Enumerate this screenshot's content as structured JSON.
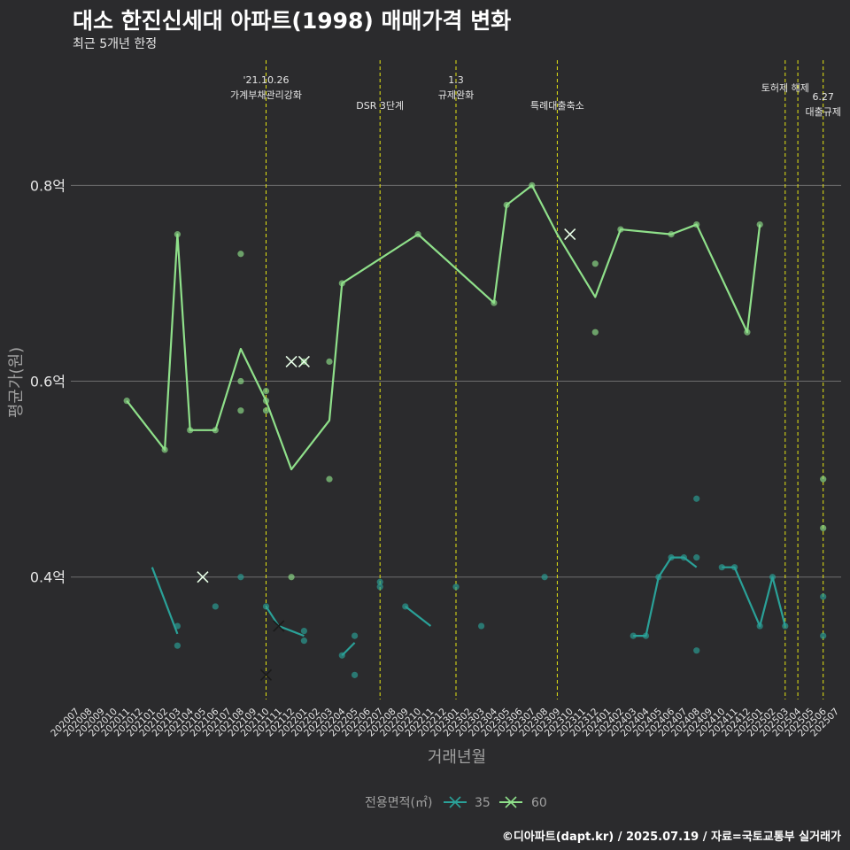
{
  "header": {
    "title": "대소 한진신세대 아파트(1998) 매매가격 변화",
    "subtitle": "최근 5개년 한정"
  },
  "footer": {
    "credit": "©디아파트(dapt.kr) / 2025.07.19 / 자료=국토교통부 실거래가"
  },
  "colors": {
    "background": "#2b2b2d",
    "grid": "#6e6e6e",
    "event_line": "#e5e512",
    "series_35": "#2aa198",
    "series_60": "#8fe08a",
    "text_light": "#e6e6e6",
    "axis_title": "#a0a0a0"
  },
  "chart_data": {
    "type": "line",
    "xlabel": "거래년월",
    "ylabel": "평균가(원)",
    "ylim": [
      0.275,
      0.935
    ],
    "y_ticks": [
      {
        "value": 0.4,
        "label": "0.4억"
      },
      {
        "value": 0.6,
        "label": "0.6억"
      },
      {
        "value": 0.8,
        "label": "0.8억"
      }
    ],
    "x_categories": [
      "202007",
      "202008",
      "202009",
      "202010",
      "202011",
      "202012",
      "202101",
      "202102",
      "202103",
      "202104",
      "202105",
      "202106",
      "202107",
      "202108",
      "202109",
      "202110",
      "202111",
      "202112",
      "202201",
      "202202",
      "202203",
      "202204",
      "202205",
      "202206",
      "202207",
      "202208",
      "202209",
      "202210",
      "202211",
      "202212",
      "202301",
      "202302",
      "202303",
      "202304",
      "202305",
      "202306",
      "202307",
      "202308",
      "202309",
      "202310",
      "202311",
      "202312",
      "202401",
      "202402",
      "202403",
      "202404",
      "202405",
      "202406",
      "202407",
      "202408",
      "202409",
      "202410",
      "202411",
      "202412",
      "202501",
      "202502",
      "202503",
      "202504",
      "202505",
      "202506",
      "202507"
    ],
    "legend": {
      "title": "전용면적(㎡)",
      "position": "bottom",
      "items": [
        {
          "label": "35",
          "color": "#2aa198"
        },
        {
          "label": "60",
          "color": "#8fe08a"
        }
      ]
    },
    "events": [
      {
        "x": 15,
        "lines": [
          "'21.10.26",
          "가계부채관리강화"
        ]
      },
      {
        "x": 24,
        "lines": [
          "DSR 3단계"
        ]
      },
      {
        "x": 30,
        "lines": [
          "1.3",
          "규제완화"
        ]
      },
      {
        "x": 38,
        "lines": [
          "특례대출축소"
        ]
      },
      {
        "x": 56,
        "lines": [
          "토허제 해제"
        ]
      },
      {
        "x": 57,
        "lines": []
      },
      {
        "x": 59,
        "lines": [
          "6.27",
          "대출규제"
        ]
      }
    ],
    "series": [
      {
        "id": "35",
        "color": "#2aa198",
        "line": [
          [
            6,
            0.41
          ],
          [
            8,
            0.342
          ],
          null,
          [
            15,
            0.37
          ],
          [
            16,
            0.35
          ],
          [
            17,
            0.345
          ],
          [
            18,
            0.34
          ],
          null,
          [
            21,
            0.32
          ],
          [
            22,
            0.333
          ],
          null,
          [
            26,
            0.37
          ],
          [
            28,
            0.35
          ],
          null,
          [
            44,
            0.34
          ],
          [
            45,
            0.34
          ],
          [
            46,
            0.4
          ],
          [
            47,
            0.42
          ],
          [
            48,
            0.42
          ],
          [
            49,
            0.41
          ],
          null,
          [
            51,
            0.41
          ],
          [
            52,
            0.41
          ],
          [
            54,
            0.35
          ],
          [
            55,
            0.4
          ],
          [
            56,
            0.35
          ]
        ],
        "points": [
          [
            8,
            0.35
          ],
          [
            8,
            0.33
          ],
          [
            11,
            0.37
          ],
          [
            13,
            0.4
          ],
          [
            15,
            0.37
          ],
          [
            18,
            0.335
          ],
          [
            18,
            0.345
          ],
          [
            21,
            0.32
          ],
          [
            22,
            0.34
          ],
          [
            22,
            0.3
          ],
          [
            24,
            0.395
          ],
          [
            24,
            0.39
          ],
          [
            26,
            0.37
          ],
          [
            30,
            0.39
          ],
          [
            32,
            0.35
          ],
          [
            37,
            0.4
          ],
          [
            44,
            0.34
          ],
          [
            45,
            0.34
          ],
          [
            46,
            0.4
          ],
          [
            47,
            0.42
          ],
          [
            48,
            0.42
          ],
          [
            49,
            0.42
          ],
          [
            49,
            0.325
          ],
          [
            49,
            0.48
          ],
          [
            51,
            0.41
          ],
          [
            52,
            0.41
          ],
          [
            54,
            0.35
          ],
          [
            55,
            0.4
          ],
          [
            56,
            0.35
          ],
          [
            59,
            0.38
          ],
          [
            59,
            0.34
          ]
        ],
        "cancelled": [
          [
            16,
            0.35
          ],
          [
            15,
            0.3
          ]
        ]
      },
      {
        "id": "60",
        "color": "#8fe08a",
        "line": [
          [
            4,
            0.58
          ],
          [
            7,
            0.53
          ],
          [
            8,
            0.75
          ],
          [
            9,
            0.55
          ],
          [
            11,
            0.55
          ],
          [
            13,
            0.633
          ],
          [
            15,
            0.58
          ],
          [
            17,
            0.51
          ],
          [
            20,
            0.56
          ],
          [
            21,
            0.7
          ],
          [
            27,
            0.75
          ],
          [
            33,
            0.68
          ],
          [
            34,
            0.78
          ],
          [
            36,
            0.8
          ],
          [
            38,
            0.75
          ],
          [
            41,
            0.686
          ],
          [
            43,
            0.755
          ],
          [
            47,
            0.75
          ],
          [
            49,
            0.76
          ],
          [
            53,
            0.65
          ],
          [
            54,
            0.76
          ]
        ],
        "points": [
          [
            4,
            0.58
          ],
          [
            7,
            0.53
          ],
          [
            8,
            0.75
          ],
          [
            9,
            0.55
          ],
          [
            11,
            0.55
          ],
          [
            13,
            0.73
          ],
          [
            13,
            0.6
          ],
          [
            13,
            0.57
          ],
          [
            15,
            0.59
          ],
          [
            15,
            0.58
          ],
          [
            15,
            0.57
          ],
          [
            17,
            0.4
          ],
          [
            18,
            0.62
          ],
          [
            20,
            0.62
          ],
          [
            20,
            0.5
          ],
          [
            21,
            0.7
          ],
          [
            27,
            0.75
          ],
          [
            33,
            0.68
          ],
          [
            34,
            0.78
          ],
          [
            36,
            0.8
          ],
          [
            41,
            0.72
          ],
          [
            41,
            0.65
          ],
          [
            43,
            0.755
          ],
          [
            47,
            0.75
          ],
          [
            49,
            0.76
          ],
          [
            53,
            0.65
          ],
          [
            54,
            0.76
          ],
          [
            59,
            0.5
          ],
          [
            59,
            0.45
          ]
        ],
        "cancelled": [
          [
            10,
            0.4
          ],
          [
            17,
            0.62
          ],
          [
            18,
            0.62
          ],
          [
            39,
            0.75
          ]
        ]
      }
    ]
  }
}
